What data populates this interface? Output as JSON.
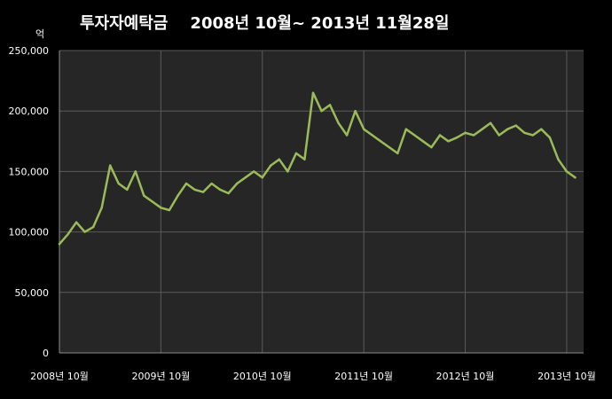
{
  "title": "투자자예탁금    2008년 10월~ 2013년 11월28일",
  "unit_label": "억",
  "colors": {
    "background": "#000000",
    "plot_background": "#262626",
    "grid": "#5a5a5a",
    "axis": "#8c8c8c",
    "text": "#ffffff",
    "line": "#9bbb59"
  },
  "chart_data": {
    "type": "line",
    "title": "투자자예탁금    2008년 10월~ 2013년 11월28일",
    "ylabel": "억",
    "xlabel": "",
    "ylim": [
      0,
      250000
    ],
    "xlim": [
      "2008-10",
      "2013-11"
    ],
    "y_ticks": [
      0,
      50000,
      100000,
      150000,
      200000,
      250000
    ],
    "y_tick_labels": [
      "0",
      "50,000",
      "100,000",
      "150,000",
      "200,000",
      "250,000"
    ],
    "x_ticks": [
      "2008-10",
      "2009-10",
      "2010-10",
      "2011-10",
      "2012-10",
      "2013-10"
    ],
    "x_tick_labels": [
      "2008년 10월",
      "2009년 10월",
      "2010년 10월",
      "2011년 10월",
      "2012년 10월",
      "2013년 10월"
    ],
    "grid": true,
    "legend": "none",
    "series": [
      {
        "x": [
          "2008-10",
          "2008-11",
          "2008-12",
          "2009-01",
          "2009-02",
          "2009-03",
          "2009-04",
          "2009-05",
          "2009-06",
          "2009-07",
          "2009-08",
          "2009-09",
          "2009-10",
          "2009-11",
          "2009-12",
          "2010-01",
          "2010-02",
          "2010-03",
          "2010-04",
          "2010-05",
          "2010-06",
          "2010-07",
          "2010-08",
          "2010-09",
          "2010-10",
          "2010-11",
          "2010-12",
          "2011-01",
          "2011-02",
          "2011-03",
          "2011-04",
          "2011-05",
          "2011-06",
          "2011-07",
          "2011-08",
          "2011-09",
          "2011-10",
          "2011-11",
          "2011-12",
          "2012-01",
          "2012-02",
          "2012-03",
          "2012-04",
          "2012-05",
          "2012-06",
          "2012-07",
          "2012-08",
          "2012-09",
          "2012-10",
          "2012-11",
          "2012-12",
          "2013-01",
          "2013-02",
          "2013-03",
          "2013-04",
          "2013-05",
          "2013-06",
          "2013-07",
          "2013-08",
          "2013-09",
          "2013-10",
          "2013-11"
        ],
        "values": [
          90000,
          98000,
          108000,
          100000,
          104000,
          120000,
          155000,
          140000,
          135000,
          150000,
          130000,
          125000,
          120000,
          118000,
          130000,
          140000,
          135000,
          133000,
          140000,
          135000,
          132000,
          140000,
          145000,
          150000,
          145000,
          155000,
          160000,
          150000,
          165000,
          160000,
          215000,
          200000,
          205000,
          190000,
          180000,
          200000,
          185000,
          180000,
          175000,
          170000,
          165000,
          185000,
          180000,
          175000,
          170000,
          180000,
          175000,
          178000,
          182000,
          180000,
          185000,
          190000,
          180000,
          185000,
          188000,
          182000,
          180000,
          185000,
          178000,
          160000,
          150000,
          145000
        ]
      }
    ]
  }
}
